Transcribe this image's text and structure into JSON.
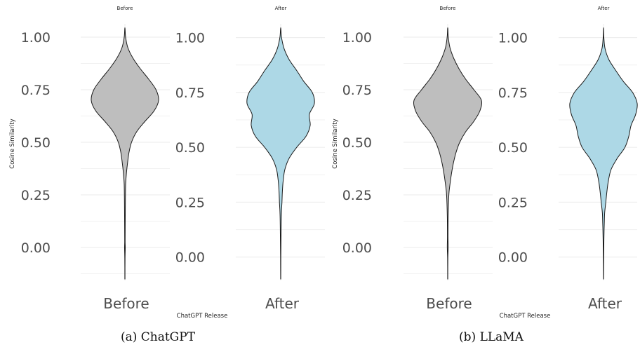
{
  "chart_data": [
    {
      "type": "violin",
      "caption": "(a) ChatGPT",
      "xlabel": "ChatGPT Release",
      "ylabel": "Cosine Similarity",
      "panels": [
        {
          "title": "Before",
          "category": "Before",
          "fill": "#bebebe",
          "ylim": [
            -0.15,
            1.05
          ],
          "yticks": [
            "0.00",
            "0.25",
            "0.50",
            "0.75",
            "1.00"
          ],
          "density": [
            [
              -0.15,
              0.002
            ],
            [
              -0.05,
              0.004
            ],
            [
              0.0,
              0.01
            ],
            [
              0.03,
              0.006
            ],
            [
              0.1,
              0.008
            ],
            [
              0.2,
              0.012
            ],
            [
              0.3,
              0.02
            ],
            [
              0.35,
              0.04
            ],
            [
              0.4,
              0.07
            ],
            [
              0.45,
              0.11
            ],
            [
              0.5,
              0.18
            ],
            [
              0.55,
              0.32
            ],
            [
              0.6,
              0.55
            ],
            [
              0.65,
              0.8
            ],
            [
              0.7,
              0.92
            ],
            [
              0.75,
              0.85
            ],
            [
              0.8,
              0.65
            ],
            [
              0.85,
              0.42
            ],
            [
              0.9,
              0.22
            ],
            [
              0.95,
              0.08
            ],
            [
              1.0,
              0.02
            ],
            [
              1.04,
              0.004
            ]
          ]
        },
        {
          "title": "After",
          "category": "After",
          "fill": "#add8e6",
          "ylim": [
            -0.1,
            1.05
          ],
          "yticks": [
            "0.00",
            "0.25",
            "0.50",
            "0.75",
            "1.00"
          ],
          "density": [
            [
              -0.1,
              0.002
            ],
            [
              0.0,
              0.004
            ],
            [
              0.1,
              0.008
            ],
            [
              0.2,
              0.016
            ],
            [
              0.25,
              0.03
            ],
            [
              0.3,
              0.04
            ],
            [
              0.35,
              0.06
            ],
            [
              0.4,
              0.1
            ],
            [
              0.45,
              0.2
            ],
            [
              0.5,
              0.38
            ],
            [
              0.55,
              0.6
            ],
            [
              0.6,
              0.7
            ],
            [
              0.65,
              0.68
            ],
            [
              0.7,
              0.8
            ],
            [
              0.75,
              0.75
            ],
            [
              0.8,
              0.55
            ],
            [
              0.85,
              0.38
            ],
            [
              0.9,
              0.2
            ],
            [
              0.95,
              0.08
            ],
            [
              1.0,
              0.02
            ],
            [
              1.04,
              0.004
            ]
          ]
        }
      ]
    },
    {
      "type": "violin",
      "caption": "(b) LLaMA",
      "xlabel": "ChatGPT Release",
      "ylabel": "Cosine Similarity",
      "panels": [
        {
          "title": "Before",
          "category": "Before",
          "fill": "#bebebe",
          "ylim": [
            -0.15,
            1.05
          ],
          "yticks": [
            "0.00",
            "0.25",
            "0.50",
            "0.75",
            "1.00"
          ],
          "density": [
            [
              -0.15,
              0.002
            ],
            [
              -0.05,
              0.004
            ],
            [
              0.0,
              0.012
            ],
            [
              0.05,
              0.008
            ],
            [
              0.15,
              0.012
            ],
            [
              0.25,
              0.03
            ],
            [
              0.3,
              0.06
            ],
            [
              0.35,
              0.1
            ],
            [
              0.4,
              0.15
            ],
            [
              0.45,
              0.22
            ],
            [
              0.5,
              0.32
            ],
            [
              0.55,
              0.48
            ],
            [
              0.6,
              0.7
            ],
            [
              0.65,
              0.86
            ],
            [
              0.7,
              0.9
            ],
            [
              0.75,
              0.7
            ],
            [
              0.8,
              0.48
            ],
            [
              0.85,
              0.3
            ],
            [
              0.9,
              0.16
            ],
            [
              0.95,
              0.06
            ],
            [
              1.0,
              0.015
            ],
            [
              1.04,
              0.003
            ]
          ]
        },
        {
          "title": "After",
          "category": "After",
          "fill": "#add8e6",
          "ylim": [
            -0.1,
            1.05
          ],
          "yticks": [
            "0.00",
            "0.25",
            "0.50",
            "0.75",
            "1.00"
          ],
          "density": [
            [
              -0.1,
              0.002
            ],
            [
              0.0,
              0.006
            ],
            [
              0.1,
              0.012
            ],
            [
              0.15,
              0.02
            ],
            [
              0.2,
              0.03
            ],
            [
              0.25,
              0.06
            ],
            [
              0.3,
              0.09
            ],
            [
              0.35,
              0.13
            ],
            [
              0.4,
              0.2
            ],
            [
              0.45,
              0.36
            ],
            [
              0.5,
              0.56
            ],
            [
              0.55,
              0.66
            ],
            [
              0.6,
              0.72
            ],
            [
              0.65,
              0.84
            ],
            [
              0.7,
              0.88
            ],
            [
              0.75,
              0.76
            ],
            [
              0.8,
              0.52
            ],
            [
              0.85,
              0.32
            ],
            [
              0.9,
              0.14
            ],
            [
              0.95,
              0.04
            ],
            [
              1.0,
              0.01
            ],
            [
              1.04,
              0.002
            ]
          ]
        }
      ]
    }
  ]
}
